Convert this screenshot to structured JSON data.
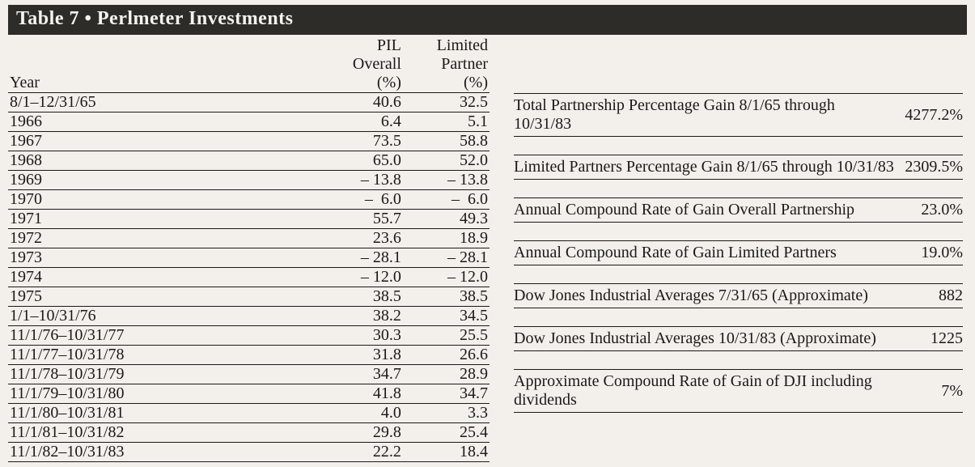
{
  "title": "Table 7 • Perlmeter Investments",
  "table": {
    "columns": {
      "year": "Year",
      "pil": [
        "PIL",
        "Overall",
        "(%)"
      ],
      "lp": [
        "Limited",
        "Partner",
        "(%)"
      ]
    },
    "rows": [
      {
        "year": "8/1–12/31/65",
        "pil": "40.6",
        "lp": "32.5"
      },
      {
        "year": "1966",
        "pil": "6.4",
        "lp": "5.1"
      },
      {
        "year": "1967",
        "pil": "73.5",
        "lp": "58.8"
      },
      {
        "year": "1968",
        "pil": "65.0",
        "lp": "52.0"
      },
      {
        "year": "1969",
        "pil": "– 13.8",
        "lp": "– 13.8"
      },
      {
        "year": "1970",
        "pil": "–  6.0",
        "lp": "–  6.0"
      },
      {
        "year": "1971",
        "pil": "55.7",
        "lp": "49.3"
      },
      {
        "year": "1972",
        "pil": "23.6",
        "lp": "18.9"
      },
      {
        "year": "1973",
        "pil": "– 28.1",
        "lp": "– 28.1"
      },
      {
        "year": "1974",
        "pil": "– 12.0",
        "lp": "– 12.0"
      },
      {
        "year": "1975",
        "pil": "38.5",
        "lp": "38.5"
      },
      {
        "year": "1/1–10/31/76",
        "pil": "38.2",
        "lp": "34.5"
      },
      {
        "year": "11/1/76–10/31/77",
        "pil": "30.3",
        "lp": "25.5"
      },
      {
        "year": "11/1/77–10/31/78",
        "pil": "31.8",
        "lp": "26.6"
      },
      {
        "year": "11/1/78–10/31/79",
        "pil": "34.7",
        "lp": "28.9"
      },
      {
        "year": "11/1/79–10/31/80",
        "pil": "41.8",
        "lp": "34.7"
      },
      {
        "year": "11/1/80–10/31/81",
        "pil": "4.0",
        "lp": "3.3"
      },
      {
        "year": "11/1/81–10/31/82",
        "pil": "29.8",
        "lp": "25.4"
      },
      {
        "year": "11/1/82–10/31/83",
        "pil": "22.2",
        "lp": "18.4"
      }
    ]
  },
  "summary": [
    {
      "label": "Total Partnership Percentage Gain 8/1/65 through 10/31/83",
      "value": "4277.2%"
    },
    {
      "label": "Limited Partners Percentage Gain 8/1/65 through 10/31/83",
      "value": "2309.5%"
    },
    {
      "label": "Annual Compound Rate of Gain Overall Partnership",
      "value": "23.0%"
    },
    {
      "label": "Annual Compound Rate of Gain Limited Partners",
      "value": "19.0%"
    },
    {
      "label": "Dow Jones Industrial Averages 7/31/65 (Approximate)",
      "value": "882"
    },
    {
      "label": "Dow Jones Industrial Averages 10/31/83 (Approximate)",
      "value": "1225"
    },
    {
      "label": "Approximate Compound Rate of Gain of DJI including dividends",
      "value": "7%"
    }
  ]
}
